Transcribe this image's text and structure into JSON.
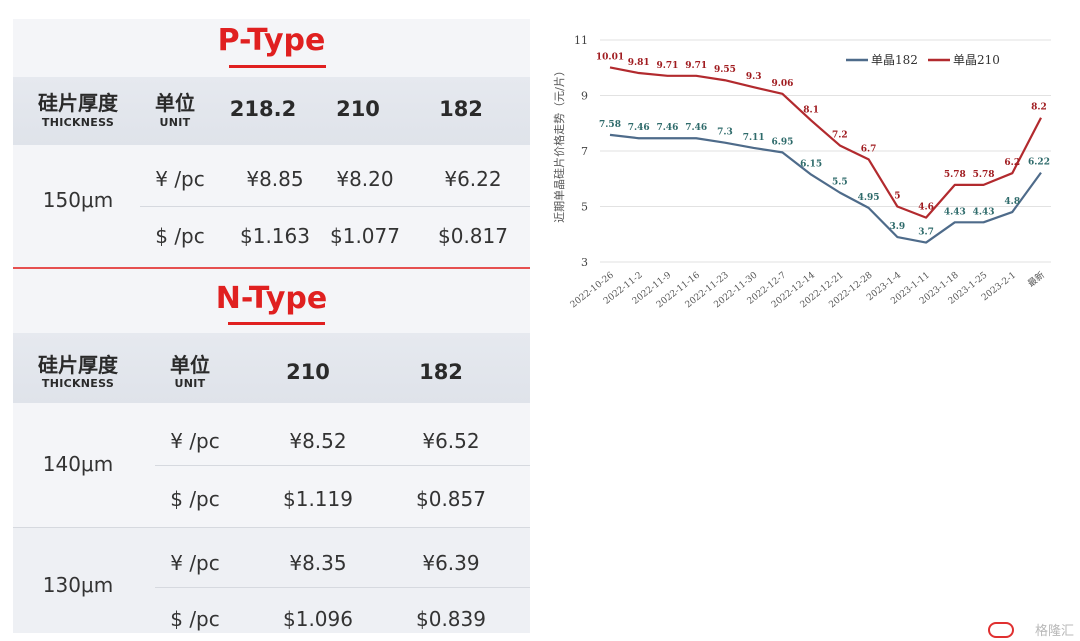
{
  "price_table": {
    "p_type": {
      "title": "P-Type",
      "header": {
        "thickness_cn": "硅片厚度",
        "thickness_en": "THICKNESS",
        "unit_cn": "单位",
        "unit_en": "UNIT",
        "sizes": [
          "218.2",
          "210",
          "182"
        ]
      },
      "rows": [
        {
          "thickness": "150μm",
          "lines": [
            {
              "unit": "¥ /pc",
              "values": [
                "¥8.85",
                "¥8.20",
                "¥6.22"
              ]
            },
            {
              "unit": "$ /pc",
              "values": [
                "$1.163",
                "$1.077",
                "$0.817"
              ]
            }
          ]
        }
      ]
    },
    "n_type": {
      "title": "N-Type",
      "header": {
        "thickness_cn": "硅片厚度",
        "thickness_en": "THICKNESS",
        "unit_cn": "单位",
        "unit_en": "UNIT",
        "sizes": [
          "210",
          "182"
        ]
      },
      "rows": [
        {
          "thickness": "140μm",
          "lines": [
            {
              "unit": "¥ /pc",
              "values": [
                "¥8.52",
                "¥6.52"
              ]
            },
            {
              "unit": "$ /pc",
              "values": [
                "$1.119",
                "$0.857"
              ]
            }
          ]
        },
        {
          "thickness": "130μm",
          "lines": [
            {
              "unit": "¥ /pc",
              "values": [
                "¥8.35",
                "¥6.39"
              ]
            },
            {
              "unit": "$ /pc",
              "values": [
                "$1.096",
                "$0.839"
              ]
            }
          ]
        }
      ]
    }
  },
  "chart_data": {
    "type": "line",
    "title": "",
    "ylabel": "近期单晶硅片价格走势（元/片）",
    "xlabel": "",
    "ylim": [
      3,
      11
    ],
    "yticks": [
      3,
      5,
      7,
      9,
      11
    ],
    "grid": true,
    "legend_position": "top-right",
    "categories": [
      "2022-10-26",
      "2022-11-2",
      "2022-11-9",
      "2022-11-16",
      "2022-11-23",
      "2022-11-30",
      "2022-12-7",
      "2022-12-14",
      "2022-12-21",
      "2022-12-28",
      "2023-1-4",
      "2023-1-11",
      "2023-1-18",
      "2023-1-25",
      "2023-2-1",
      "最新"
    ],
    "series": [
      {
        "name": "单晶182",
        "color": "#4e6b8a",
        "label_color": "#2f6b6b",
        "values": [
          7.58,
          7.46,
          7.46,
          7.46,
          7.3,
          7.11,
          6.95,
          6.15,
          5.5,
          4.95,
          3.9,
          3.7,
          4.43,
          4.43,
          4.8,
          6.22
        ],
        "labels": [
          "7.58",
          "7.46",
          "7.46",
          "7.46",
          "7.3",
          "7.11",
          "6.95",
          "6.15",
          "5.5",
          "4.95",
          "3.9",
          "3.7",
          "4.43",
          "4.43",
          "4.8",
          "6.22"
        ]
      },
      {
        "name": "单晶210",
        "color": "#b22a2e",
        "label_color": "#a01c20",
        "values": [
          10.01,
          9.81,
          9.71,
          9.71,
          9.55,
          9.3,
          9.06,
          8.1,
          7.2,
          6.7,
          5.0,
          4.6,
          5.78,
          5.78,
          6.2,
          8.2
        ],
        "labels": [
          "10.01",
          "9.81",
          "9.71",
          "9.71",
          "9.55",
          "9.3",
          "9.06",
          "8.1",
          "7.2",
          "6.7",
          "5",
          "4.6",
          "5.78",
          "5.78",
          "6.2",
          "8.2"
        ]
      }
    ]
  },
  "watermark": {
    "text": "格隆汇"
  }
}
